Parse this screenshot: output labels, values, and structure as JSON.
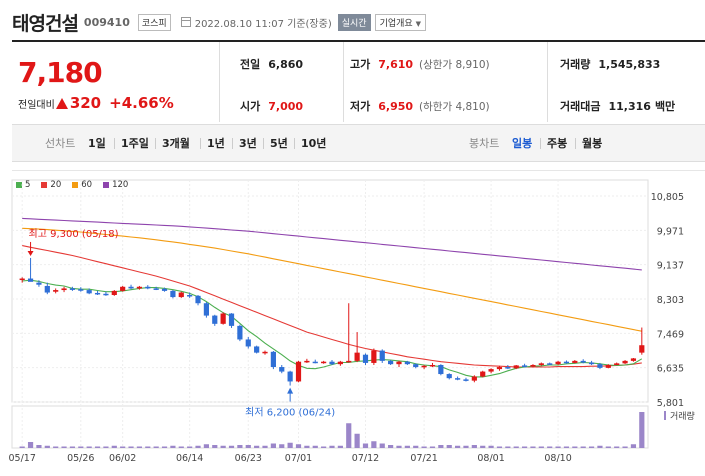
{
  "header": {
    "name": "태영건설",
    "code": "009410",
    "market": "코스피",
    "datetime": "2022.08.10 11:07 기준(장중)",
    "live": "실시간",
    "info": "기업개요"
  },
  "price": {
    "current": "7,180",
    "change_label": "전일대비",
    "change": "320",
    "change_pct": "+4.66%"
  },
  "stats": {
    "prev_label": "전일",
    "prev": "6,860",
    "high_label": "고가",
    "high": "7,610",
    "upper_limit": "(상한가 8,910)",
    "volume_label": "거래량",
    "volume": "1,545,833",
    "open_label": "시가",
    "open": "7,000",
    "low_label": "저가",
    "low": "6,950",
    "lower_limit": "(하한가 4,810)",
    "amount_label": "거래대금",
    "amount": "11,316",
    "amount_unit": "백만"
  },
  "periods": {
    "line_label": "선차트",
    "line_opts": [
      "1일",
      "1주일",
      "3개월",
      "1년",
      "3년",
      "5년",
      "10년"
    ],
    "candle_label": "봉차트",
    "candle_opts": [
      "일봉",
      "주봉",
      "월봉"
    ],
    "active": "일봉"
  },
  "chart_data": {
    "type": "candlestick",
    "legend": [
      {
        "name": "5",
        "color": "#4caf50"
      },
      {
        "name": "20",
        "color": "#e53935"
      },
      {
        "name": "60",
        "color": "#f39c12"
      },
      {
        "name": "120",
        "color": "#8e44ad"
      }
    ],
    "y_ticks": [
      "10,805",
      "9,971",
      "9,137",
      "8,303",
      "7,469",
      "6,635",
      "5,801"
    ],
    "ylim": [
      5801,
      10805
    ],
    "x_ticks": [
      "05/17",
      "05/26",
      "06/02",
      "06/14",
      "06/23",
      "07/01",
      "07/12",
      "07/21",
      "08/01",
      "08/10"
    ],
    "max_label": "최고 9,300 (05/18)",
    "min_label": "최저 6,200 (06/24)",
    "volume_label": "거래량",
    "up_color": "#e01717",
    "down_color": "#2f6fd6",
    "candles": [
      [
        8780,
        8830,
        8700,
        8800
      ],
      [
        8800,
        9300,
        8750,
        8720
      ],
      [
        8700,
        8760,
        8600,
        8650
      ],
      [
        8620,
        8700,
        8420,
        8460
      ],
      [
        8480,
        8560,
        8440,
        8520
      ],
      [
        8520,
        8600,
        8470,
        8560
      ],
      [
        8560,
        8600,
        8500,
        8530
      ],
      [
        8540,
        8590,
        8480,
        8520
      ],
      [
        8520,
        8560,
        8420,
        8440
      ],
      [
        8450,
        8500,
        8400,
        8430
      ],
      [
        8430,
        8480,
        8380,
        8400
      ],
      [
        8400,
        8520,
        8380,
        8500
      ],
      [
        8500,
        8620,
        8480,
        8600
      ],
      [
        8600,
        8650,
        8540,
        8560
      ],
      [
        8560,
        8620,
        8530,
        8600
      ],
      [
        8600,
        8640,
        8540,
        8560
      ],
      [
        8560,
        8600,
        8520,
        8550
      ],
      [
        8550,
        8580,
        8480,
        8500
      ],
      [
        8500,
        8520,
        8320,
        8350
      ],
      [
        8350,
        8480,
        8330,
        8460
      ],
      [
        8400,
        8460,
        8330,
        8380
      ],
      [
        8380,
        8400,
        8150,
        8200
      ],
      [
        8200,
        8230,
        7850,
        7900
      ],
      [
        7900,
        7920,
        7650,
        7700
      ],
      [
        7700,
        7980,
        7680,
        7950
      ],
      [
        7950,
        7960,
        7600,
        7650
      ],
      [
        7650,
        7680,
        7280,
        7320
      ],
      [
        7320,
        7380,
        7100,
        7150
      ],
      [
        7150,
        7170,
        6980,
        7000
      ],
      [
        7000,
        7050,
        6950,
        7020
      ],
      [
        7020,
        7040,
        6600,
        6650
      ],
      [
        6650,
        6700,
        6500,
        6540
      ],
      [
        6540,
        6560,
        6200,
        6300
      ],
      [
        6300,
        6800,
        6280,
        6780
      ],
      [
        6780,
        6850,
        6750,
        6800
      ],
      [
        6780,
        6830,
        6740,
        6760
      ],
      [
        6760,
        6800,
        6730,
        6780
      ],
      [
        6780,
        6820,
        6700,
        6720
      ],
      [
        6720,
        6800,
        6680,
        6780
      ],
      [
        6780,
        8200,
        6760,
        6800
      ],
      [
        6800,
        7500,
        6770,
        7000
      ],
      [
        6950,
        6980,
        6700,
        6750
      ],
      [
        6750,
        7100,
        6700,
        7050
      ],
      [
        7050,
        7080,
        6750,
        6800
      ],
      [
        6800,
        6820,
        6700,
        6720
      ],
      [
        6720,
        6800,
        6650,
        6780
      ],
      [
        6780,
        6800,
        6700,
        6720
      ],
      [
        6720,
        6740,
        6620,
        6650
      ],
      [
        6650,
        6700,
        6600,
        6680
      ],
      [
        6680,
        6750,
        6650,
        6700
      ],
      [
        6700,
        6720,
        6450,
        6480
      ],
      [
        6480,
        6500,
        6350,
        6380
      ],
      [
        6380,
        6420,
        6330,
        6350
      ],
      [
        6350,
        6390,
        6300,
        6320
      ],
      [
        6320,
        6450,
        6280,
        6420
      ],
      [
        6420,
        6560,
        6400,
        6540
      ],
      [
        6540,
        6620,
        6500,
        6600
      ],
      [
        6600,
        6680,
        6560,
        6650
      ],
      [
        6650,
        6700,
        6600,
        6620
      ],
      [
        6620,
        6700,
        6600,
        6690
      ],
      [
        6690,
        6730,
        6640,
        6660
      ],
      [
        6660,
        6720,
        6640,
        6700
      ],
      [
        6700,
        6760,
        6680,
        6740
      ],
      [
        6740,
        6760,
        6700,
        6720
      ],
      [
        6720,
        6800,
        6700,
        6780
      ],
      [
        6780,
        6810,
        6730,
        6750
      ],
      [
        6750,
        6820,
        6740,
        6800
      ],
      [
        6800,
        6840,
        6740,
        6760
      ],
      [
        6760,
        6800,
        6700,
        6720
      ],
      [
        6720,
        6750,
        6600,
        6630
      ],
      [
        6630,
        6720,
        6620,
        6700
      ],
      [
        6700,
        6760,
        6690,
        6740
      ],
      [
        6740,
        6820,
        6720,
        6800
      ],
      [
        6800,
        6870,
        6780,
        6860
      ],
      [
        7000,
        7610,
        6950,
        7180
      ]
    ],
    "volume": [
      2,
      8,
      4,
      3,
      2,
      2,
      2,
      2,
      2,
      2,
      2,
      3,
      2,
      2,
      2,
      2,
      2,
      2,
      3,
      2,
      2,
      3,
      5,
      4,
      3,
      3,
      4,
      4,
      3,
      3,
      6,
      5,
      7,
      5,
      3,
      3,
      2,
      3,
      3,
      33,
      19,
      6,
      9,
      6,
      4,
      3,
      3,
      3,
      2,
      2,
      4,
      4,
      3,
      3,
      4,
      3,
      3,
      2,
      2,
      2,
      2,
      2,
      2,
      2,
      2,
      2,
      2,
      2,
      2,
      3,
      2,
      2,
      2,
      5,
      48
    ],
    "ma": {
      "5": [
        8740,
        8760,
        8730,
        8680,
        8640,
        8620,
        8560,
        8540,
        8540,
        8510,
        8480,
        8480,
        8500,
        8530,
        8560,
        8580,
        8580,
        8560,
        8530,
        8490,
        8440,
        8360,
        8240,
        8100,
        7970,
        7880,
        7710,
        7530,
        7390,
        7230,
        7090,
        6950,
        6800,
        6690,
        6620,
        6610,
        6650,
        6710,
        6760,
        6760,
        6790,
        6800,
        6820,
        6830,
        6820,
        6800,
        6780,
        6730,
        6700,
        6680,
        6660,
        6580,
        6520,
        6450,
        6410,
        6410,
        6450,
        6490,
        6560,
        6620,
        6650,
        6670,
        6680,
        6700,
        6700,
        6730,
        6740,
        6760,
        6750,
        6730,
        6700,
        6690,
        6700,
        6730,
        6850
      ],
      "20": [
        9600,
        9560,
        9520,
        9480,
        9440,
        9400,
        9360,
        9310,
        9260,
        9210,
        9160,
        9110,
        9060,
        9010,
        8960,
        8910,
        8860,
        8800,
        8740,
        8680,
        8620,
        8540,
        8460,
        8380,
        8300,
        8220,
        8140,
        8060,
        7980,
        7900,
        7820,
        7740,
        7660,
        7580,
        7500,
        7440,
        7380,
        7320,
        7260,
        7200,
        7150,
        7100,
        7060,
        7020,
        6980,
        6940,
        6900,
        6870,
        6840,
        6810,
        6780,
        6760,
        6740,
        6720,
        6700,
        6690,
        6680,
        6670,
        6660,
        6650,
        6650,
        6650,
        6650,
        6650,
        6660,
        6660,
        6660,
        6660,
        6670,
        6670,
        6680,
        6690,
        6700,
        6720,
        6750
      ],
      "60": [
        10020,
        10010,
        10000,
        9990,
        9975,
        9960,
        9945,
        9930,
        9910,
        9890,
        9870,
        9850,
        9830,
        9810,
        9790,
        9765,
        9740,
        9715,
        9690,
        9660,
        9630,
        9600,
        9570,
        9540,
        9505,
        9470,
        9435,
        9400,
        9360,
        9320,
        9280,
        9240,
        9200,
        9160,
        9120,
        9080,
        9040,
        9000,
        8960,
        8920,
        8880,
        8840,
        8800,
        8760,
        8720,
        8680,
        8640,
        8600,
        8560,
        8520,
        8480,
        8440,
        8400,
        8360,
        8320,
        8280,
        8240,
        8200,
        8160,
        8120,
        8080,
        8040,
        8000,
        7960,
        7920,
        7880,
        7840,
        7800,
        7760,
        7720,
        7680,
        7640,
        7600,
        7560,
        7520
      ],
      "120": [
        10260,
        10250,
        10240,
        10230,
        10220,
        10210,
        10200,
        10190,
        10180,
        10170,
        10160,
        10150,
        10140,
        10130,
        10120,
        10110,
        10100,
        10090,
        10080,
        10070,
        10055,
        10040,
        10025,
        10010,
        9995,
        9980,
        9965,
        9950,
        9930,
        9910,
        9890,
        9870,
        9850,
        9830,
        9810,
        9790,
        9770,
        9750,
        9730,
        9710,
        9690,
        9670,
        9650,
        9630,
        9610,
        9590,
        9570,
        9550,
        9530,
        9510,
        9490,
        9470,
        9450,
        9430,
        9410,
        9390,
        9370,
        9350,
        9330,
        9310,
        9290,
        9270,
        9250,
        9230,
        9210,
        9190,
        9170,
        9150,
        9130,
        9110,
        9090,
        9070,
        9050,
        9030,
        9010
      ]
    }
  }
}
